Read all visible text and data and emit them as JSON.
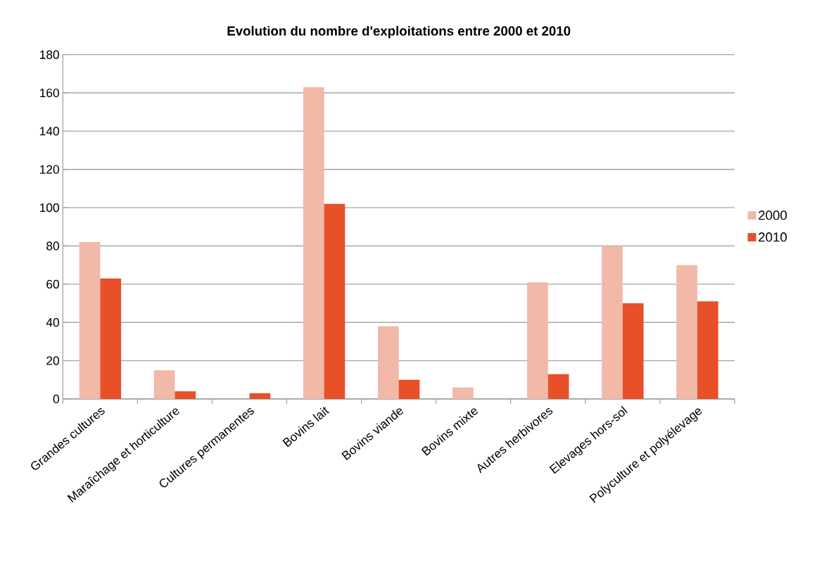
{
  "chart_data": {
    "type": "bar",
    "title": "Evolution du nombre d'exploitations entre 2000 et 2010",
    "categories": [
      "Grandes cultures",
      "Maraîchage et horticulture",
      "Cultures permanentes",
      "Bovins lait",
      "Bovins viande",
      "Bovins mixte",
      "Autres herbivores",
      "Elevages hors-sol",
      "Polyculture et polyélevage"
    ],
    "series": [
      {
        "name": "2000",
        "color": "#f2b8a8",
        "values": [
          82,
          15,
          0,
          163,
          38,
          6,
          61,
          80,
          70
        ]
      },
      {
        "name": "2010",
        "color": "#e8502a",
        "values": [
          63,
          4,
          3,
          102,
          10,
          0,
          13,
          50,
          51
        ]
      }
    ],
    "ylim": [
      0,
      180
    ],
    "yticks": [
      0,
      20,
      40,
      60,
      80,
      100,
      120,
      140,
      160,
      180
    ],
    "grid": "y",
    "legend": "right"
  }
}
